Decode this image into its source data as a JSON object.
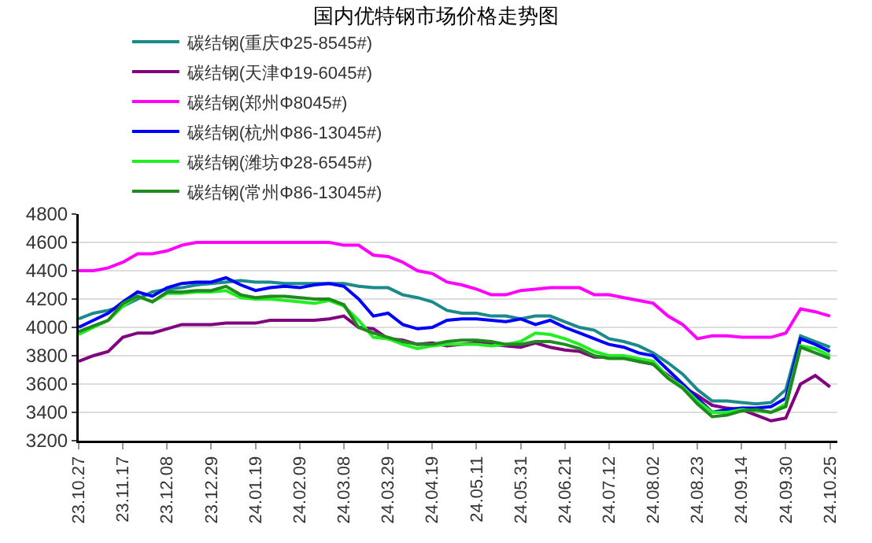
{
  "chart_data": {
    "type": "line",
    "title": "国内优特钢市场价格走势图",
    "categories": [
      "23.10.27",
      null,
      null,
      "23.11.17",
      null,
      null,
      "23.12.08",
      null,
      null,
      "23.12.29",
      null,
      null,
      "24.01.19",
      null,
      null,
      "24.02.09",
      null,
      null,
      "24.03.08",
      null,
      null,
      "24.03.29",
      null,
      null,
      "24.04.19",
      null,
      null,
      "24.05.11",
      null,
      null,
      "24.05.31",
      null,
      null,
      "24.06.21",
      null,
      null,
      "24.07.12",
      null,
      null,
      "24.08.02",
      null,
      null,
      "24.08.23",
      null,
      null,
      "24.09.14",
      null,
      null,
      "24.09.30",
      null,
      null,
      "24.10.25"
    ],
    "series": [
      {
        "name": "碳结钢(重庆Φ25-8545#)",
        "color": "#1a8a8a",
        "values": [
          4060,
          4100,
          4120,
          4150,
          4200,
          4250,
          4270,
          4280,
          4300,
          4310,
          4320,
          4330,
          4320,
          4320,
          4310,
          4310,
          4310,
          4310,
          4310,
          4290,
          4280,
          4280,
          4230,
          4210,
          4180,
          4120,
          4100,
          4100,
          4080,
          4080,
          4060,
          4080,
          4080,
          4040,
          4000,
          3980,
          3920,
          3900,
          3870,
          3820,
          3750,
          3670,
          3560,
          3480,
          3480,
          3470,
          3460,
          3470,
          3560,
          3940,
          3900,
          3860
        ]
      },
      {
        "name": "碳结钢(天津Φ19-6045#)",
        "color": "#800080",
        "values": [
          3760,
          3800,
          3830,
          3930,
          3960,
          3960,
          3990,
          4020,
          4020,
          4020,
          4030,
          4030,
          4030,
          4050,
          4050,
          4050,
          4050,
          4060,
          4080,
          4000,
          3990,
          3920,
          3910,
          3880,
          3890,
          3870,
          3880,
          3890,
          3880,
          3870,
          3860,
          3890,
          3860,
          3840,
          3830,
          3790,
          3790,
          3790,
          3760,
          3740,
          3660,
          3580,
          3520,
          3450,
          3430,
          3420,
          3380,
          3340,
          3360,
          3600,
          3660,
          3580
        ]
      },
      {
        "name": "碳结钢(郑州Φ8045#)",
        "color": "#ff00ff",
        "values": [
          4400,
          4400,
          4420,
          4460,
          4520,
          4520,
          4540,
          4580,
          4600,
          4600,
          4600,
          4600,
          4600,
          4600,
          4600,
          4600,
          4600,
          4600,
          4580,
          4580,
          4510,
          4500,
          4460,
          4400,
          4380,
          4320,
          4300,
          4270,
          4230,
          4230,
          4260,
          4270,
          4280,
          4280,
          4280,
          4230,
          4230,
          4210,
          4190,
          4170,
          4080,
          4020,
          3920,
          3940,
          3940,
          3930,
          3930,
          3930,
          3960,
          4130,
          4110,
          4080
        ]
      },
      {
        "name": "碳结钢(杭州Φ86-13045#)",
        "color": "#0000ff",
        "values": [
          4000,
          4050,
          4100,
          4180,
          4250,
          4220,
          4280,
          4310,
          4320,
          4320,
          4350,
          4300,
          4260,
          4280,
          4290,
          4280,
          4300,
          4310,
          4290,
          4200,
          4080,
          4100,
          4020,
          3990,
          4000,
          4050,
          4060,
          4060,
          4050,
          4040,
          4060,
          4020,
          4050,
          4000,
          3960,
          3920,
          3880,
          3860,
          3820,
          3800,
          3700,
          3600,
          3500,
          3400,
          3420,
          3430,
          3430,
          3440,
          3500,
          3920,
          3880,
          3830
        ]
      },
      {
        "name": "碳结钢(潍坊Φ28-6545#)",
        "color": "#22ee22",
        "values": [
          3950,
          4000,
          4050,
          4150,
          4220,
          4180,
          4240,
          4240,
          4250,
          4250,
          4260,
          4210,
          4200,
          4200,
          4190,
          4180,
          4170,
          4190,
          4150,
          4050,
          3930,
          3920,
          3880,
          3850,
          3870,
          3880,
          3880,
          3880,
          3870,
          3880,
          3900,
          3960,
          3950,
          3920,
          3880,
          3830,
          3800,
          3800,
          3780,
          3760,
          3650,
          3580,
          3480,
          3400,
          3400,
          3420,
          3410,
          3400,
          3460,
          3870,
          3850,
          3800
        ]
      },
      {
        "name": "碳结钢(常州Φ86-13045#)",
        "color": "#1f8b1f",
        "values": [
          3970,
          4010,
          4050,
          4170,
          4220,
          4180,
          4250,
          4250,
          4260,
          4260,
          4290,
          4230,
          4210,
          4220,
          4220,
          4210,
          4200,
          4200,
          4160,
          4000,
          3960,
          3930,
          3900,
          3880,
          3880,
          3900,
          3910,
          3910,
          3900,
          3880,
          3880,
          3900,
          3900,
          3880,
          3850,
          3800,
          3780,
          3780,
          3760,
          3740,
          3640,
          3570,
          3460,
          3370,
          3380,
          3410,
          3420,
          3400,
          3440,
          3860,
          3820,
          3780
        ]
      }
    ],
    "ylim": [
      3200,
      4800
    ],
    "yticks": [
      3200,
      3400,
      3600,
      3800,
      4000,
      4200,
      4400,
      4600,
      4800
    ],
    "grid": "y",
    "legend": "top",
    "marker": "none",
    "line_style": "solid"
  }
}
